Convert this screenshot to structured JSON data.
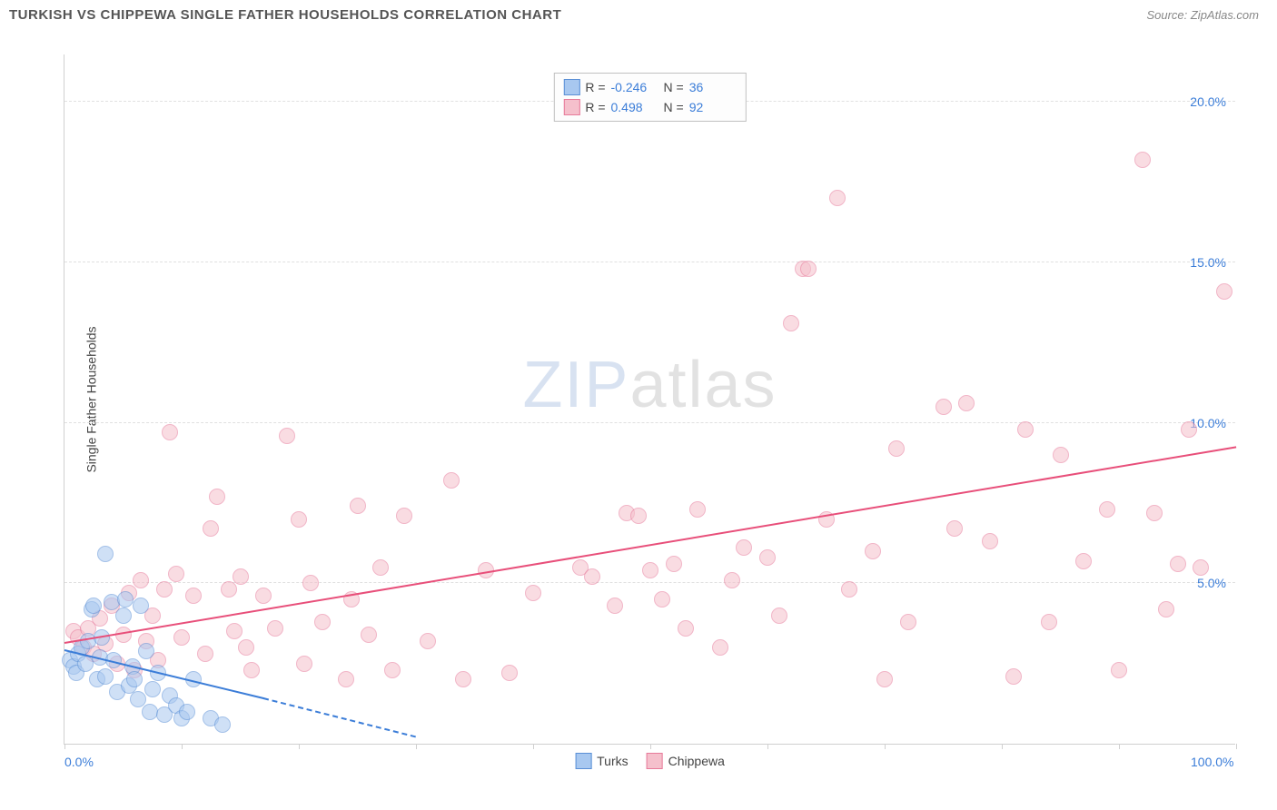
{
  "header": {
    "title": "TURKISH VS CHIPPEWA SINGLE FATHER HOUSEHOLDS CORRELATION CHART",
    "source_prefix": "Source: ",
    "source_name": "ZipAtlas.com"
  },
  "chart": {
    "type": "scatter",
    "y_axis_label": "Single Father Households",
    "xlim": [
      0,
      100
    ],
    "ylim": [
      0,
      21.5
    ],
    "x_tick_positions": [
      0,
      10,
      20,
      30,
      40,
      50,
      60,
      70,
      80,
      90,
      100
    ],
    "x_tick_labels": {
      "0": "0.0%",
      "100": "100.0%"
    },
    "y_ticks": [
      5,
      10,
      15,
      20
    ],
    "y_tick_labels": {
      "5": "5.0%",
      "10": "10.0%",
      "15": "15.0%",
      "20": "20.0%"
    },
    "grid_color": "#e0e0e0",
    "axis_color": "#d0d0d0",
    "background": "#ffffff",
    "tick_label_color": "#3b7dd8",
    "axis_label_color": "#444444",
    "point_radius": 9,
    "point_opacity": 0.55,
    "series": {
      "turks": {
        "label": "Turks",
        "fill": "#a8c8f0",
        "stroke": "#5a8fd6",
        "trend_color": "#3b7dd8",
        "r_value": "-0.246",
        "n_value": "36",
        "trend": {
          "x1": 0,
          "y1": 2.9,
          "x2": 17,
          "y2": 1.4
        },
        "trend_dash": {
          "x1": 17,
          "y1": 1.4,
          "x2": 30,
          "y2": 0.2
        },
        "points": [
          [
            0.5,
            2.6
          ],
          [
            0.8,
            2.4
          ],
          [
            1.2,
            2.8
          ],
          [
            1.5,
            3.0
          ],
          [
            1.0,
            2.2
          ],
          [
            1.8,
            2.5
          ],
          [
            2.0,
            3.2
          ],
          [
            2.3,
            4.2
          ],
          [
            2.5,
            4.3
          ],
          [
            2.8,
            2.0
          ],
          [
            3.0,
            2.7
          ],
          [
            3.2,
            3.3
          ],
          [
            3.5,
            2.1
          ],
          [
            3.5,
            5.9
          ],
          [
            4.0,
            4.4
          ],
          [
            4.2,
            2.6
          ],
          [
            4.5,
            1.6
          ],
          [
            5.0,
            4.0
          ],
          [
            5.2,
            4.5
          ],
          [
            5.5,
            1.8
          ],
          [
            5.8,
            2.4
          ],
          [
            6.0,
            2.0
          ],
          [
            6.3,
            1.4
          ],
          [
            6.5,
            4.3
          ],
          [
            7.0,
            2.9
          ],
          [
            7.3,
            1.0
          ],
          [
            7.5,
            1.7
          ],
          [
            8.0,
            2.2
          ],
          [
            8.5,
            0.9
          ],
          [
            9.0,
            1.5
          ],
          [
            9.5,
            1.2
          ],
          [
            10.0,
            0.8
          ],
          [
            10.5,
            1.0
          ],
          [
            11.0,
            2.0
          ],
          [
            12.5,
            0.8
          ],
          [
            13.5,
            0.6
          ]
        ]
      },
      "chippewa": {
        "label": "Chippewa",
        "fill": "#f5c0cc",
        "stroke": "#e77a9a",
        "trend_color": "#e84f7a",
        "r_value": "0.498",
        "n_value": "92",
        "trend": {
          "x1": 0,
          "y1": 3.1,
          "x2": 100,
          "y2": 9.2
        },
        "points": [
          [
            0.8,
            3.5
          ],
          [
            1.2,
            3.3
          ],
          [
            1.6,
            3.0
          ],
          [
            2.0,
            3.6
          ],
          [
            2.5,
            2.8
          ],
          [
            3.0,
            3.9
          ],
          [
            3.5,
            3.1
          ],
          [
            4.0,
            4.3
          ],
          [
            4.5,
            2.5
          ],
          [
            5.0,
            3.4
          ],
          [
            5.5,
            4.7
          ],
          [
            6.0,
            2.3
          ],
          [
            6.5,
            5.1
          ],
          [
            7.0,
            3.2
          ],
          [
            7.5,
            4.0
          ],
          [
            8.0,
            2.6
          ],
          [
            8.5,
            4.8
          ],
          [
            9.0,
            9.7
          ],
          [
            9.5,
            5.3
          ],
          [
            10.0,
            3.3
          ],
          [
            11.0,
            4.6
          ],
          [
            12.0,
            2.8
          ],
          [
            12.5,
            6.7
          ],
          [
            13.0,
            7.7
          ],
          [
            14.0,
            4.8
          ],
          [
            14.5,
            3.5
          ],
          [
            15.0,
            5.2
          ],
          [
            15.5,
            3.0
          ],
          [
            16.0,
            2.3
          ],
          [
            17.0,
            4.6
          ],
          [
            18.0,
            3.6
          ],
          [
            19.0,
            9.6
          ],
          [
            20.0,
            7.0
          ],
          [
            20.5,
            2.5
          ],
          [
            21.0,
            5.0
          ],
          [
            22.0,
            3.8
          ],
          [
            24.0,
            2.0
          ],
          [
            24.5,
            4.5
          ],
          [
            25.0,
            7.4
          ],
          [
            26.0,
            3.4
          ],
          [
            27.0,
            5.5
          ],
          [
            28.0,
            2.3
          ],
          [
            29.0,
            7.1
          ],
          [
            31.0,
            3.2
          ],
          [
            33.0,
            8.2
          ],
          [
            34.0,
            2.0
          ],
          [
            36.0,
            5.4
          ],
          [
            38.0,
            2.2
          ],
          [
            40.0,
            4.7
          ],
          [
            44.0,
            5.5
          ],
          [
            45.0,
            5.2
          ],
          [
            47.0,
            4.3
          ],
          [
            48,
            7.2
          ],
          [
            49.0,
            7.1
          ],
          [
            50.0,
            5.4
          ],
          [
            51.0,
            4.5
          ],
          [
            52.0,
            5.6
          ],
          [
            53.0,
            3.6
          ],
          [
            54.0,
            7.3
          ],
          [
            56.0,
            3.0
          ],
          [
            57.0,
            5.1
          ],
          [
            58.0,
            6.1
          ],
          [
            60.0,
            5.8
          ],
          [
            61.0,
            4.0
          ],
          [
            62.0,
            13.1
          ],
          [
            63.0,
            14.8
          ],
          [
            63.5,
            14.8
          ],
          [
            65.0,
            7.0
          ],
          [
            66.0,
            17.0
          ],
          [
            67.0,
            4.8
          ],
          [
            69.0,
            6.0
          ],
          [
            70.0,
            2.0
          ],
          [
            71.0,
            9.2
          ],
          [
            72.0,
            3.8
          ],
          [
            75.0,
            10.5
          ],
          [
            76.0,
            6.7
          ],
          [
            77.0,
            10.6
          ],
          [
            79.0,
            6.3
          ],
          [
            81.0,
            2.1
          ],
          [
            82.0,
            9.8
          ],
          [
            84.0,
            3.8
          ],
          [
            85.0,
            9.0
          ],
          [
            87.0,
            5.7
          ],
          [
            89.0,
            7.3
          ],
          [
            90.0,
            2.3
          ],
          [
            92.0,
            18.2
          ],
          [
            93.0,
            7.2
          ],
          [
            94.0,
            4.2
          ],
          [
            95.0,
            5.6
          ],
          [
            96.0,
            9.8
          ],
          [
            97.0,
            5.5
          ],
          [
            99.0,
            14.1
          ]
        ]
      }
    }
  },
  "legend_top": {
    "r_label": "R = ",
    "n_label": "N = "
  },
  "watermark": {
    "part1": "ZIP",
    "part2": "atlas"
  }
}
